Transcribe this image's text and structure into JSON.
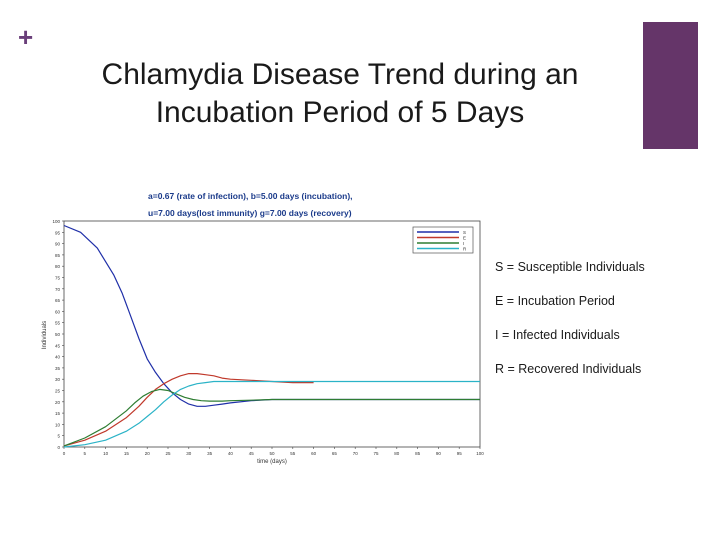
{
  "slide": {
    "title_line1": "Chlamydia Disease Trend during an",
    "title_line2": "Incubation Period of 5 Days",
    "accent_color": "#653569",
    "legend_explanations": [
      "S = Susceptible Individuals",
      "E = Incubation Period",
      "I = Infected Individuals",
      "R = Recovered Individuals"
    ]
  },
  "chart_data": {
    "type": "line",
    "header_line1": "a=0.67 (rate of infection), b=5.00 days (incubation),",
    "header_line2": "u=7.00 days(lost immunity) g=7.00 days (recovery)",
    "xlabel": "time (days)",
    "ylabel": "Individuals",
    "xlim": [
      0,
      100
    ],
    "ylim": [
      0,
      100
    ],
    "xticks": [
      0,
      5,
      10,
      15,
      20,
      25,
      30,
      35,
      40,
      45,
      50,
      55,
      60,
      65,
      70,
      75,
      80,
      85,
      90,
      95,
      100
    ],
    "yticks": [
      0,
      5,
      10,
      15,
      20,
      25,
      30,
      35,
      40,
      45,
      50,
      55,
      60,
      65,
      70,
      75,
      80,
      85,
      90,
      95,
      100
    ],
    "grid": false,
    "legend_position": "top-right",
    "series": [
      {
        "name": "S",
        "color": "#1f2fa8",
        "x": [
          0,
          4,
          8,
          12,
          14,
          16,
          18,
          20,
          22,
          24,
          26,
          28,
          30,
          32,
          34,
          36,
          38,
          40,
          45,
          50,
          55,
          60,
          70,
          80,
          90,
          100
        ],
        "y": [
          98,
          95,
          88,
          76,
          68,
          58,
          48,
          39,
          33,
          28,
          24,
          21,
          19,
          18,
          18,
          18.5,
          19,
          19.5,
          20.5,
          21,
          21,
          21,
          21,
          21,
          21,
          21
        ]
      },
      {
        "name": "E",
        "color": "#c0392b",
        "x": [
          0,
          5,
          10,
          15,
          18,
          20,
          22,
          24,
          26,
          28,
          30,
          32,
          34,
          36,
          38,
          40,
          45,
          50,
          55,
          60
        ],
        "y": [
          0.5,
          3,
          7,
          13,
          18,
          22,
          25.5,
          28,
          30,
          31.5,
          32.5,
          32.5,
          32,
          31.5,
          30.5,
          30,
          29.5,
          29,
          28.5,
          28.5
        ]
      },
      {
        "name": "I",
        "color": "#2e7d32",
        "x": [
          0,
          5,
          10,
          15,
          17,
          19,
          21,
          23,
          25,
          27,
          29,
          31,
          33,
          35,
          38,
          40,
          45,
          50,
          55,
          60,
          70,
          80,
          90,
          100
        ],
        "y": [
          0.5,
          4,
          9,
          16,
          19.5,
          22.5,
          24.5,
          25.5,
          25,
          23.5,
          22,
          21,
          20.5,
          20.3,
          20.3,
          20.5,
          20.7,
          21,
          21,
          21,
          21,
          21,
          21,
          21
        ]
      },
      {
        "name": "R",
        "color": "#2bb3c7",
        "x": [
          0,
          5,
          10,
          15,
          18,
          20,
          22,
          24,
          26,
          28,
          30,
          32,
          34,
          36,
          38,
          40,
          45,
          50,
          60,
          70,
          80,
          90,
          100
        ],
        "y": [
          0,
          1,
          3,
          7,
          10.5,
          13.5,
          16.5,
          20,
          23,
          25.5,
          27,
          28,
          28.5,
          29,
          29,
          29,
          29,
          29,
          29,
          29,
          29,
          29,
          29
        ]
      }
    ]
  }
}
